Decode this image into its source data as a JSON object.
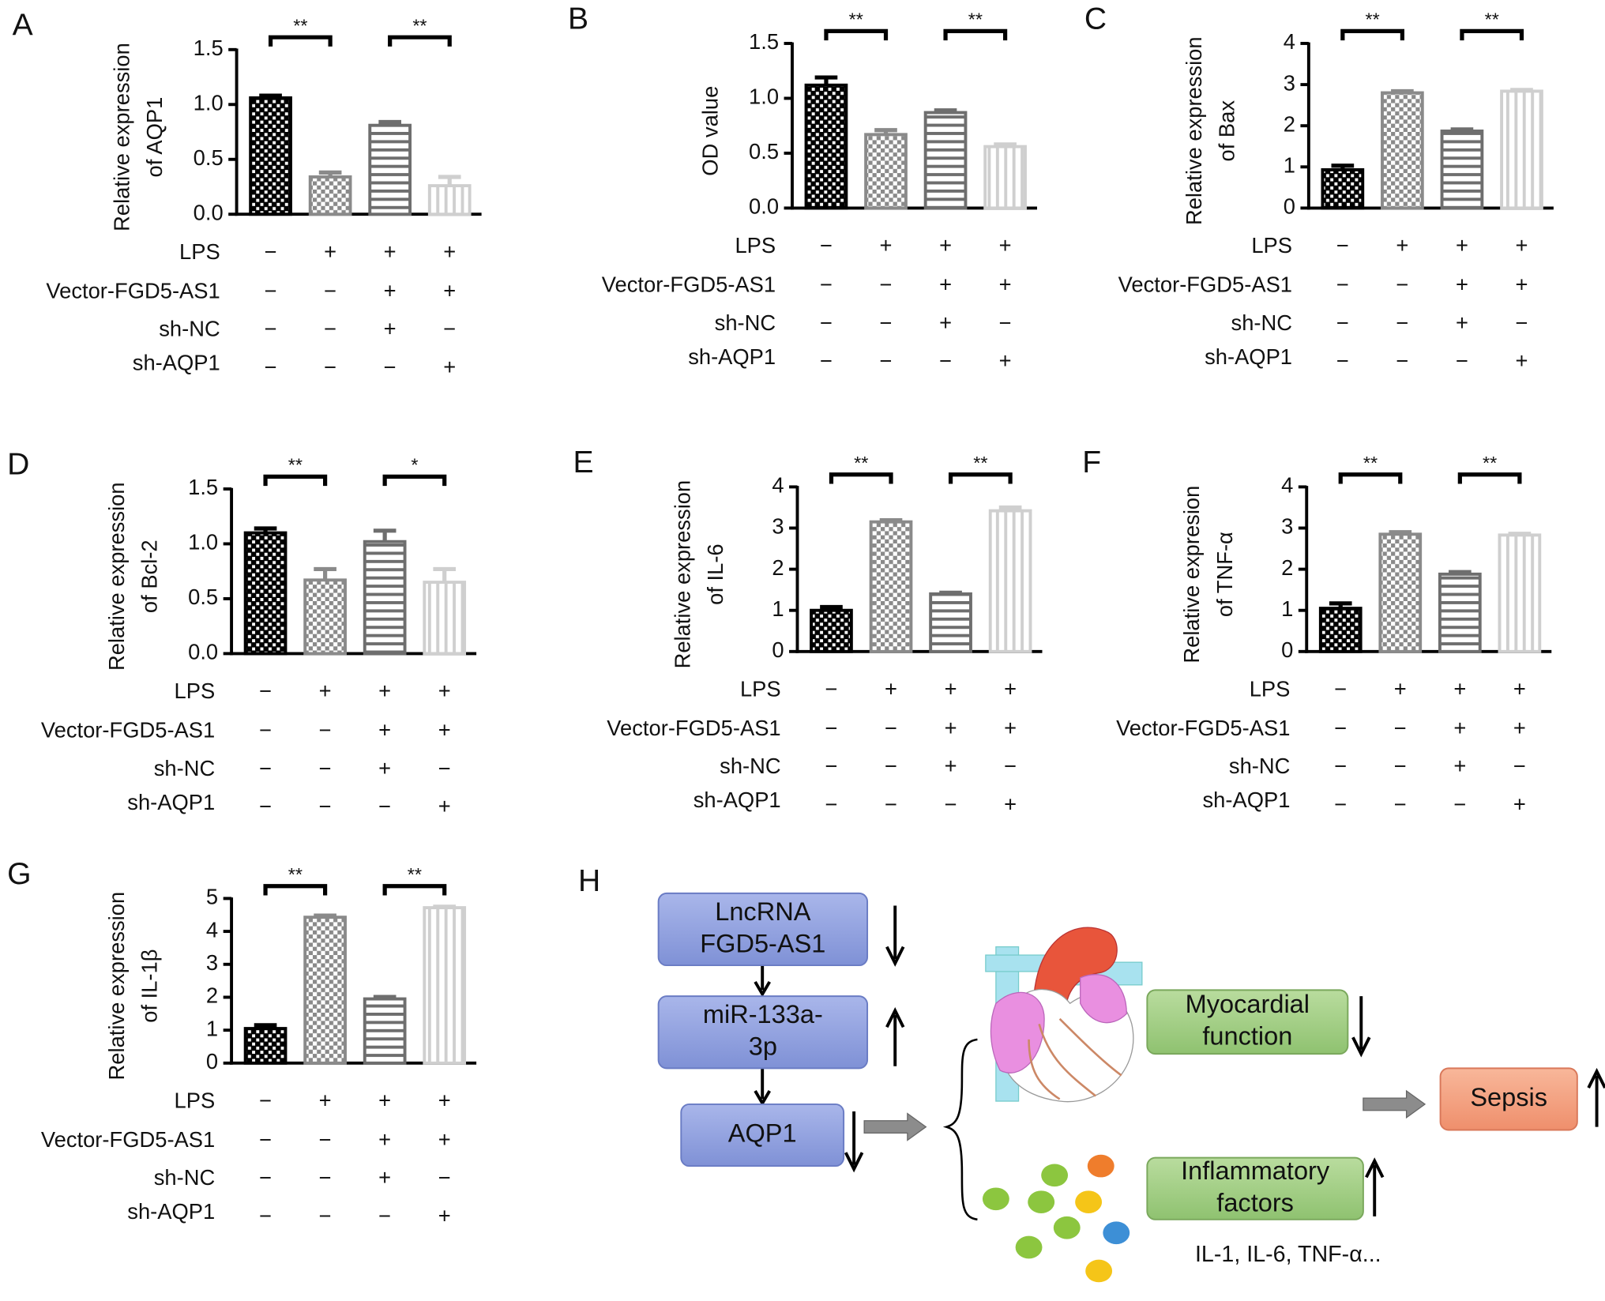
{
  "chart_data": [
    {
      "type": "bar",
      "panel": "A",
      "ylabel": [
        "Relative expression",
        "of AQP1"
      ],
      "values": [
        1.06,
        0.34,
        0.81,
        0.26
      ],
      "errors": [
        0.02,
        0.04,
        0.03,
        0.08
      ],
      "ylim": [
        0,
        1.5
      ],
      "yticks": [
        {
          "value": 0,
          "label": "0.0"
        },
        0.5,
        {
          "value": 1,
          "label": "1.0"
        },
        1.5
      ],
      "colors": [
        "#000000",
        "#8a8a8a",
        "#6e6e6e",
        "#cfcfcf"
      ],
      "significance": [
        "**",
        "**"
      ],
      "conditions": [
        {
          "name": "LPS",
          "signs": [
            "−",
            "+",
            "+",
            "+"
          ]
        },
        {
          "name": "Vector-FGD5-AS1",
          "signs": [
            "−",
            "−",
            "+",
            "+"
          ]
        },
        {
          "name": "sh-NC",
          "signs": [
            "−",
            "−",
            "+",
            "−"
          ]
        },
        {
          "name": "sh-AQP1",
          "signs": [
            "−",
            "−",
            "−",
            "+"
          ]
        }
      ]
    },
    {
      "type": "bar",
      "panel": "B",
      "ylabel": [
        "OD value"
      ],
      "values": [
        1.12,
        0.67,
        0.87,
        0.56
      ],
      "errors": [
        0.07,
        0.04,
        0.02,
        0.02
      ],
      "ylim": [
        0,
        1.5
      ],
      "yticks": [
        {
          "value": 0,
          "label": "0.0"
        },
        0.5,
        {
          "value": 1,
          "label": "1.0"
        },
        1.5
      ],
      "colors": [
        "#000000",
        "#8a8a8a",
        "#6e6e6e",
        "#cfcfcf"
      ],
      "significance": [
        "**",
        "**"
      ],
      "conditions": [
        {
          "name": "LPS",
          "signs": [
            "−",
            "+",
            "+",
            "+"
          ]
        },
        {
          "name": "Vector-FGD5-AS1",
          "signs": [
            "−",
            "−",
            "+",
            "+"
          ]
        },
        {
          "name": "sh-NC",
          "signs": [
            "−",
            "−",
            "+",
            "−"
          ]
        },
        {
          "name": "sh-AQP1",
          "signs": [
            "−",
            "−",
            "−",
            "+"
          ]
        }
      ]
    },
    {
      "type": "bar",
      "panel": "C",
      "ylabel": [
        "Relative expression",
        "of Bax"
      ],
      "values": [
        0.93,
        2.8,
        1.87,
        2.84
      ],
      "errors": [
        0.1,
        0.04,
        0.04,
        0.03
      ],
      "ylim": [
        0,
        4
      ],
      "yticks": [
        0,
        1,
        2,
        3,
        4
      ],
      "colors": [
        "#000000",
        "#8a8a8a",
        "#6e6e6e",
        "#cfcfcf"
      ],
      "significance": [
        "**",
        "**"
      ],
      "conditions": [
        {
          "name": "LPS",
          "signs": [
            "−",
            "+",
            "+",
            "+"
          ]
        },
        {
          "name": "Vector-FGD5-AS1",
          "signs": [
            "−",
            "−",
            "+",
            "+"
          ]
        },
        {
          "name": "sh-NC",
          "signs": [
            "−",
            "−",
            "+",
            "−"
          ]
        },
        {
          "name": "sh-AQP1",
          "signs": [
            "−",
            "−",
            "−",
            "+"
          ]
        }
      ]
    },
    {
      "type": "bar",
      "panel": "D",
      "ylabel": [
        "Relative expression",
        "of Bcl-2"
      ],
      "values": [
        1.1,
        0.67,
        1.02,
        0.65
      ],
      "errors": [
        0.04,
        0.1,
        0.1,
        0.12
      ],
      "ylim": [
        0,
        1.5
      ],
      "yticks": [
        {
          "value": 0,
          "label": "0.0"
        },
        0.5,
        {
          "value": 1,
          "label": "1.0"
        },
        1.5
      ],
      "colors": [
        "#000000",
        "#8a8a8a",
        "#6e6e6e",
        "#cfcfcf"
      ],
      "significance": [
        "**",
        "*"
      ],
      "conditions": [
        {
          "name": "LPS",
          "signs": [
            "−",
            "+",
            "+",
            "+"
          ]
        },
        {
          "name": "Vector-FGD5-AS1",
          "signs": [
            "−",
            "−",
            "+",
            "+"
          ]
        },
        {
          "name": "sh-NC",
          "signs": [
            "−",
            "−",
            "+",
            "−"
          ]
        },
        {
          "name": "sh-AQP1",
          "signs": [
            "−",
            "−",
            "−",
            "+"
          ]
        }
      ]
    },
    {
      "type": "bar",
      "panel": "E",
      "ylabel": [
        "Relative expression",
        "of IL-6"
      ],
      "values": [
        1.0,
        3.15,
        1.4,
        3.42
      ],
      "errors": [
        0.08,
        0.04,
        0.03,
        0.08
      ],
      "ylim": [
        0,
        4
      ],
      "yticks": [
        0,
        1,
        2,
        3,
        4
      ],
      "colors": [
        "#000000",
        "#8a8a8a",
        "#6e6e6e",
        "#cfcfcf"
      ],
      "significance": [
        "**",
        "**"
      ],
      "conditions": [
        {
          "name": "LPS",
          "signs": [
            "−",
            "+",
            "+",
            "+"
          ]
        },
        {
          "name": "Vector-FGD5-AS1",
          "signs": [
            "−",
            "−",
            "+",
            "+"
          ]
        },
        {
          "name": "sh-NC",
          "signs": [
            "−",
            "−",
            "+",
            "−"
          ]
        },
        {
          "name": "sh-AQP1",
          "signs": [
            "−",
            "−",
            "−",
            "+"
          ]
        }
      ]
    },
    {
      "type": "bar",
      "panel": "F",
      "ylabel": [
        "Relative expresion",
        "of TNF-α"
      ],
      "values": [
        1.05,
        2.85,
        1.88,
        2.83
      ],
      "errors": [
        0.12,
        0.05,
        0.05,
        0.03
      ],
      "ylim": [
        0,
        4
      ],
      "yticks": [
        0,
        1,
        2,
        3,
        4
      ],
      "colors": [
        "#000000",
        "#8a8a8a",
        "#6e6e6e",
        "#cfcfcf"
      ],
      "significance": [
        "**",
        "**"
      ],
      "conditions": [
        {
          "name": "LPS",
          "signs": [
            "−",
            "+",
            "+",
            "+"
          ]
        },
        {
          "name": "Vector-FGD5-AS1",
          "signs": [
            "−",
            "−",
            "+",
            "+"
          ]
        },
        {
          "name": "sh-NC",
          "signs": [
            "−",
            "−",
            "+",
            "−"
          ]
        },
        {
          "name": "sh-AQP1",
          "signs": [
            "−",
            "−",
            "−",
            "+"
          ]
        }
      ]
    },
    {
      "type": "bar",
      "panel": "G",
      "ylabel": [
        "Relative expression",
        "of IL-1β"
      ],
      "values": [
        1.05,
        4.43,
        1.95,
        4.72
      ],
      "errors": [
        0.1,
        0.05,
        0.06,
        0.03
      ],
      "ylim": [
        0,
        5
      ],
      "yticks": [
        0,
        1,
        2,
        3,
        4,
        5
      ],
      "colors": [
        "#000000",
        "#8a8a8a",
        "#6e6e6e",
        "#cfcfcf"
      ],
      "significance": [
        "**",
        "**"
      ],
      "conditions": [
        {
          "name": "LPS",
          "signs": [
            "−",
            "+",
            "+",
            "+"
          ]
        },
        {
          "name": "Vector-FGD5-AS1",
          "signs": [
            "−",
            "−",
            "+",
            "+"
          ]
        },
        {
          "name": "sh-NC",
          "signs": [
            "−",
            "−",
            "+",
            "−"
          ]
        },
        {
          "name": "sh-AQP1",
          "signs": [
            "−",
            "−",
            "−",
            "+"
          ]
        }
      ]
    }
  ],
  "diagram": {
    "panel": "H",
    "nodes": [
      {
        "lines": [
          "LncRNA",
          "FGD5-AS1"
        ]
      },
      {
        "lines": [
          "miR-133a-",
          "3p"
        ]
      },
      {
        "lines": [
          "AQP1"
        ]
      },
      {
        "lines": [
          "Myocardial",
          "function"
        ]
      },
      {
        "lines": [
          "Inflammatory",
          "factors"
        ]
      },
      {
        "lines": [
          "Sepsis"
        ]
      }
    ],
    "note": "IL-1, IL-6, TNF-α..."
  }
}
